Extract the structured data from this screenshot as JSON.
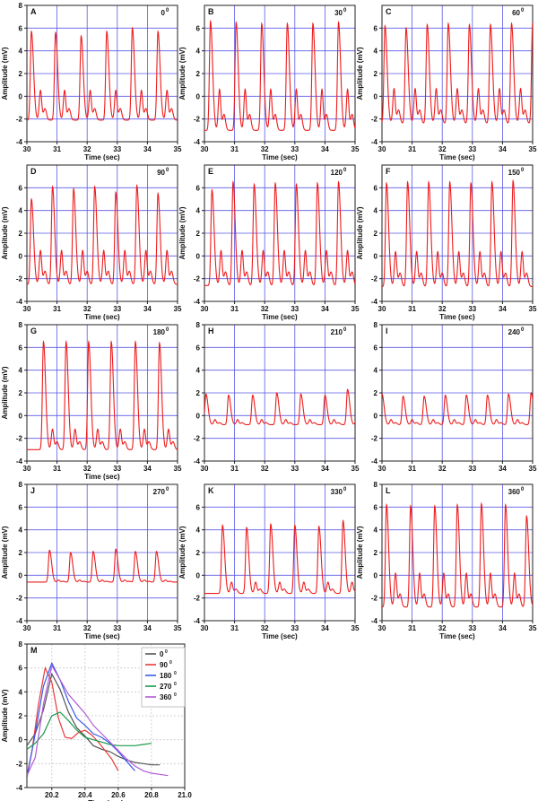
{
  "figure": {
    "common": {
      "xlabel": "Time (sec)",
      "ylabel": "Amplitude (mV)",
      "line_color": "#ee1c1c",
      "grid_color": "#5a5ae6"
    }
  },
  "chart_data": [
    {
      "panel": "A",
      "angle": "0",
      "angle_unit": "0",
      "type": "line",
      "x_ticks": [
        "30",
        "31",
        "32",
        "33",
        "34",
        "35"
      ],
      "y_ticks": [
        "-4",
        "-2",
        "0",
        "2",
        "4",
        "6",
        "8"
      ],
      "xlim": [
        30,
        35
      ],
      "ylim": [
        -4,
        8
      ],
      "xlabel": "Time (sec)",
      "ylabel": "Amplitude (mV)",
      "peak_times": [
        30.15,
        30.95,
        31.8,
        32.65,
        33.5,
        34.35
      ],
      "peak_values": [
        5.7,
        5.6,
        5.3,
        5.7,
        6.0,
        5.7
      ],
      "baseline": -2.1,
      "secondary_wave": 0.8,
      "grid": true
    },
    {
      "panel": "B",
      "angle": "30",
      "angle_unit": "0",
      "type": "line",
      "x_ticks": [
        "30",
        "31",
        "32",
        "33",
        "34",
        "35"
      ],
      "y_ticks": [
        "-4",
        "-2",
        "0",
        "2",
        "4",
        "6"
      ],
      "xlim": [
        30,
        35
      ],
      "ylim": [
        -4,
        8
      ],
      "xlabel": "Time (sec)",
      "ylabel": "Amplitude (mV)",
      "peak_times": [
        30.2,
        31.05,
        31.9,
        32.75,
        33.6,
        34.45
      ],
      "peak_values": [
        6.6,
        6.5,
        6.4,
        6.4,
        6.4,
        6.5
      ],
      "baseline": -3.0,
      "secondary_wave": 1.0,
      "grid": true
    },
    {
      "panel": "C",
      "angle": "60",
      "angle_unit": "0",
      "type": "line",
      "x_ticks": [
        "30",
        "31",
        "32",
        "33",
        "34",
        "35"
      ],
      "y_ticks": [
        "-4",
        "-2",
        "0",
        "2",
        "4",
        "6"
      ],
      "xlim": [
        30,
        35
      ],
      "ylim": [
        -4,
        8
      ],
      "xlabel": "Time (sec)",
      "ylabel": "Amplitude (mV)",
      "peak_times": [
        30.1,
        30.8,
        31.5,
        32.2,
        32.9,
        33.6,
        34.3,
        35.0
      ],
      "peak_values": [
        6.2,
        6.0,
        6.3,
        6.4,
        6.3,
        6.3,
        6.4,
        6.5
      ],
      "baseline": -2.4,
      "secondary_wave": 1.0,
      "grid": true
    },
    {
      "panel": "D",
      "angle": "90",
      "angle_unit": "0",
      "type": "line",
      "x_ticks": [
        "30",
        "31",
        "32",
        "33",
        "34",
        "35"
      ],
      "y_ticks": [
        "-4",
        "-2",
        "0",
        "2",
        "4",
        "6"
      ],
      "xlim": [
        30,
        35
      ],
      "ylim": [
        -4,
        8
      ],
      "xlabel": "Time (sec)",
      "ylabel": "Amplitude (mV)",
      "peak_times": [
        30.15,
        30.85,
        31.55,
        32.25,
        32.95,
        33.65,
        34.35
      ],
      "peak_values": [
        5.0,
        6.1,
        5.9,
        6.1,
        5.6,
        6.2,
        5.5
      ],
      "baseline": -2.5,
      "secondary_wave": 0.8,
      "grid": true
    },
    {
      "panel": "E",
      "angle": "120",
      "angle_unit": "0",
      "type": "line",
      "x_ticks": [
        "30",
        "31",
        "32",
        "33",
        "34",
        "35"
      ],
      "y_ticks": [
        "-4",
        "-2",
        "0",
        "2",
        "4",
        "6"
      ],
      "xlim": [
        30,
        35
      ],
      "ylim": [
        -4,
        8
      ],
      "xlabel": "Time (sec)",
      "ylabel": "Amplitude (mV)",
      "peak_times": [
        30.25,
        30.95,
        31.65,
        32.35,
        33.05,
        33.75,
        34.45
      ],
      "peak_values": [
        5.8,
        6.5,
        6.3,
        6.4,
        6.3,
        6.4,
        6.5
      ],
      "baseline": -2.6,
      "secondary_wave": 0.8,
      "grid": true
    },
    {
      "panel": "F",
      "angle": "150",
      "angle_unit": "0",
      "type": "line",
      "x_ticks": [
        "30",
        "31",
        "32",
        "33",
        "34",
        "35"
      ],
      "y_ticks": [
        "-4",
        "-2",
        "0",
        "2",
        "4",
        "6"
      ],
      "xlim": [
        30,
        35
      ],
      "ylim": [
        -4,
        8
      ],
      "xlabel": "Time (sec)",
      "ylabel": "Amplitude (mV)",
      "peak_times": [
        30.15,
        30.85,
        31.55,
        32.25,
        32.95,
        33.65,
        34.35
      ],
      "peak_values": [
        6.4,
        6.5,
        6.5,
        6.5,
        6.4,
        6.5,
        6.6
      ],
      "baseline": -2.7,
      "secondary_wave": 0.7,
      "grid": true
    },
    {
      "panel": "G",
      "angle": "180",
      "angle_unit": "0",
      "type": "line",
      "x_ticks": [
        "30",
        "31",
        "32",
        "33",
        "34",
        "35"
      ],
      "y_ticks": [
        "-4",
        "-2",
        "0",
        "2",
        "4",
        "6",
        "8"
      ],
      "xlim": [
        30,
        35
      ],
      "ylim": [
        -4,
        8
      ],
      "xlabel": "Time (sec)",
      "ylabel": "Amplitude (mV)",
      "peak_times": [
        30.55,
        31.3,
        32.05,
        32.8,
        33.6,
        34.4
      ],
      "peak_values": [
        6.5,
        6.5,
        6.5,
        6.5,
        6.5,
        6.4
      ],
      "baseline": -3.0,
      "secondary_wave": -1.0,
      "grid": true
    },
    {
      "panel": "H",
      "angle": "210",
      "angle_unit": "0",
      "type": "line",
      "x_ticks": [
        "30",
        "31",
        "32",
        "33",
        "34",
        "35"
      ],
      "y_ticks": [
        "-4",
        "-2",
        "0",
        "2",
        "4",
        "6",
        "8"
      ],
      "xlim": [
        30,
        35
      ],
      "ylim": [
        -4,
        8
      ],
      "xlabel": "",
      "ylabel": "",
      "peak_times": [
        30.05,
        30.8,
        31.6,
        32.4,
        33.2,
        34.0,
        34.75
      ],
      "peak_values": [
        1.9,
        1.8,
        1.8,
        2.0,
        1.9,
        1.8,
        2.3
      ],
      "baseline": -0.8,
      "secondary_wave": -0.3,
      "grid": true
    },
    {
      "panel": "I",
      "angle": "240",
      "angle_unit": "0",
      "type": "line",
      "x_ticks": [
        "30",
        "31",
        "32",
        "33",
        "34",
        "35"
      ],
      "y_ticks": [
        "-4",
        "-2",
        "0",
        "2",
        "4",
        "6",
        "8"
      ],
      "xlim": [
        30,
        35
      ],
      "ylim": [
        -4,
        8
      ],
      "xlabel": "",
      "ylabel": "",
      "peak_times": [
        30.0,
        30.7,
        31.4,
        32.1,
        32.8,
        33.5,
        34.2,
        34.95
      ],
      "peak_values": [
        1.9,
        1.7,
        1.7,
        1.8,
        1.8,
        1.8,
        1.9,
        2.0
      ],
      "baseline": -0.8,
      "secondary_wave": -0.3,
      "grid": true
    },
    {
      "panel": "J",
      "angle": "270",
      "angle_unit": "0",
      "type": "line",
      "x_ticks": [
        "30",
        "31",
        "32",
        "33",
        "34",
        "35"
      ],
      "y_ticks": [
        "-4",
        "-2",
        "0",
        "2",
        "4",
        "6",
        "8"
      ],
      "xlim": [
        30,
        35
      ],
      "ylim": [
        -4,
        8
      ],
      "xlabel": "Time (sec)",
      "ylabel": "Amplitude (mV)",
      "peak_times": [
        30.75,
        31.45,
        32.2,
        32.95,
        33.6,
        34.3
      ],
      "peak_values": [
        2.2,
        2.0,
        2.1,
        2.3,
        2.1,
        2.1
      ],
      "baseline": -0.6,
      "secondary_wave": -0.4,
      "grid": true
    },
    {
      "panel": "K",
      "angle": "330",
      "angle_unit": "0",
      "type": "line",
      "x_ticks": [
        "30",
        "31",
        "32",
        "33",
        "34",
        "35"
      ],
      "y_ticks": [
        "-4",
        "-2",
        "0",
        "2",
        "4",
        "6"
      ],
      "xlim": [
        30,
        35
      ],
      "ylim": [
        -4,
        8
      ],
      "xlabel": "Time (sec)",
      "ylabel": "Amplitude (mV)",
      "peak_times": [
        30.6,
        31.4,
        32.2,
        33.0,
        33.8,
        34.6
      ],
      "peak_values": [
        4.4,
        4.2,
        4.5,
        4.4,
        4.3,
        4.8
      ],
      "baseline": -1.6,
      "secondary_wave": -0.5,
      "grid": true
    },
    {
      "panel": "L",
      "angle": "360",
      "angle_unit": "0",
      "type": "line",
      "x_ticks": [
        "30",
        "31",
        "32",
        "33",
        "34",
        "35"
      ],
      "y_ticks": [
        "-4",
        "-2",
        "0",
        "2",
        "4",
        "6",
        "8"
      ],
      "xlim": [
        30,
        35
      ],
      "ylim": [
        -4,
        8
      ],
      "xlabel": "Time (sec)",
      "ylabel": "Amplitude (mV)",
      "peak_times": [
        30.15,
        30.95,
        31.75,
        32.5,
        33.3,
        34.1,
        34.8
      ],
      "peak_values": [
        6.2,
        6.1,
        6.1,
        6.2,
        6.3,
        6.2,
        5.2
      ],
      "baseline": -2.8,
      "secondary_wave": 0.5,
      "grid": true
    },
    {
      "panel": "M",
      "type": "line",
      "x_ticks": [
        "20.2",
        "20.4",
        "20.6",
        "20.8",
        "21.0"
      ],
      "y_ticks": [
        "-4",
        "-2",
        "0",
        "2",
        "4",
        "6",
        "8"
      ],
      "xlim": [
        20.05,
        21.0
      ],
      "ylim": [
        -4,
        8
      ],
      "xlabel": "Time (sec)",
      "ylabel": "Amplitude (mV)",
      "grid": true,
      "legend_position": "top-right",
      "series": [
        {
          "name": "0",
          "unit": "0",
          "color": "#555555",
          "x": [
            20.05,
            20.1,
            20.15,
            20.2,
            20.25,
            20.3,
            20.35,
            20.4,
            20.45,
            20.5,
            20.55,
            20.6,
            20.65,
            20.7,
            20.75,
            20.8,
            20.85
          ],
          "y": [
            -0.5,
            0.5,
            2.5,
            5.5,
            4.2,
            2.3,
            1.0,
            0.3,
            -0.5,
            -0.8,
            -1.0,
            -1.4,
            -1.7,
            -1.9,
            -2.0,
            -2.1,
            -2.1
          ]
        },
        {
          "name": "90",
          "unit": "0",
          "color": "#e83a3a",
          "x": [
            20.05,
            20.08,
            20.12,
            20.16,
            20.2,
            20.24,
            20.28,
            20.32,
            20.36,
            20.4,
            20.44,
            20.48,
            20.52,
            20.56,
            20.6
          ],
          "y": [
            -3.0,
            -1.0,
            3.0,
            6.0,
            4.8,
            1.8,
            0.2,
            0.1,
            0.6,
            0.8,
            0.4,
            -0.2,
            -0.9,
            -1.6,
            -2.6
          ]
        },
        {
          "name": "180",
          "unit": "0",
          "color": "#3a5ae8",
          "x": [
            20.05,
            20.1,
            20.15,
            20.2,
            20.25,
            20.3,
            20.35,
            20.4,
            20.45,
            20.5,
            20.55,
            20.6,
            20.65,
            20.7
          ],
          "y": [
            -3.2,
            0.5,
            4.5,
            6.4,
            5.0,
            3.2,
            1.8,
            1.2,
            0.5,
            0.2,
            -0.3,
            -1.0,
            -1.8,
            -2.6
          ]
        },
        {
          "name": "270",
          "unit": "0",
          "color": "#1a9a4a",
          "x": [
            20.05,
            20.1,
            20.15,
            20.2,
            20.25,
            20.3,
            20.35,
            20.4,
            20.45,
            20.5,
            20.55,
            20.6,
            20.65,
            20.7,
            20.75,
            20.8
          ],
          "y": [
            -0.8,
            -0.3,
            0.5,
            2.0,
            2.3,
            1.6,
            0.8,
            0.2,
            0.0,
            -0.2,
            -0.4,
            -0.5,
            -0.5,
            -0.5,
            -0.4,
            -0.3
          ]
        },
        {
          "name": "360",
          "unit": "0",
          "color": "#b25ad8",
          "x": [
            20.05,
            20.1,
            20.15,
            20.2,
            20.25,
            20.3,
            20.35,
            20.4,
            20.45,
            20.5,
            20.55,
            20.6,
            20.65,
            20.7,
            20.75,
            20.8,
            20.85,
            20.9
          ],
          "y": [
            -3.0,
            -1.5,
            3.0,
            6.2,
            5.0,
            3.8,
            3.0,
            2.2,
            1.2,
            0.5,
            -0.2,
            -0.9,
            -1.6,
            -2.2,
            -2.6,
            -2.8,
            -2.9,
            -3.0
          ]
        }
      ]
    }
  ]
}
